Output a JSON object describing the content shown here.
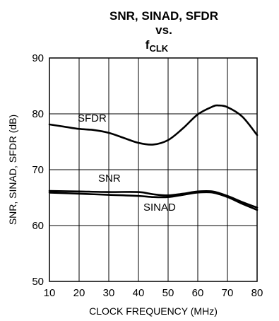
{
  "chart_data": {
    "type": "line",
    "title_line1": "SNR, SINAD, SFDR",
    "title_line2": "vs.",
    "title_line3_main": "f",
    "title_line3_sub": "CLK",
    "xlabel": "CLOCK FREQUENCY (MHz)",
    "ylabel": "SNR, SINAD, SFDR  (dB)",
    "xlim": [
      10,
      80
    ],
    "ylim": [
      50,
      90
    ],
    "xticks": [
      10,
      20,
      30,
      40,
      50,
      60,
      70,
      80
    ],
    "yticks": [
      50,
      60,
      70,
      80,
      90
    ],
    "grid": true,
    "series": [
      {
        "name": "SFDR",
        "x": [
          10,
          15,
          20,
          25,
          30,
          35,
          40,
          45,
          50,
          55,
          60,
          65,
          67,
          70,
          75,
          80
        ],
        "y": [
          78.1,
          77.7,
          77.3,
          77.1,
          76.6,
          75.7,
          74.8,
          74.5,
          75.3,
          77.4,
          79.9,
          81.3,
          81.5,
          81.2,
          79.5,
          76.2
        ]
      },
      {
        "name": "SNR",
        "x": [
          10,
          20,
          30,
          40,
          45,
          50,
          55,
          60,
          65,
          70,
          75,
          80
        ],
        "y": [
          66.2,
          66.1,
          66.0,
          66.0,
          65.6,
          65.4,
          65.7,
          66.1,
          66.1,
          65.3,
          64.2,
          63.2
        ]
      },
      {
        "name": "SINAD",
        "x": [
          10,
          20,
          30,
          40,
          45,
          50,
          55,
          60,
          65,
          70,
          75,
          80
        ],
        "y": [
          65.9,
          65.7,
          65.5,
          65.3,
          65.1,
          65.1,
          65.5,
          65.9,
          65.9,
          65.1,
          63.9,
          62.8
        ]
      }
    ]
  }
}
